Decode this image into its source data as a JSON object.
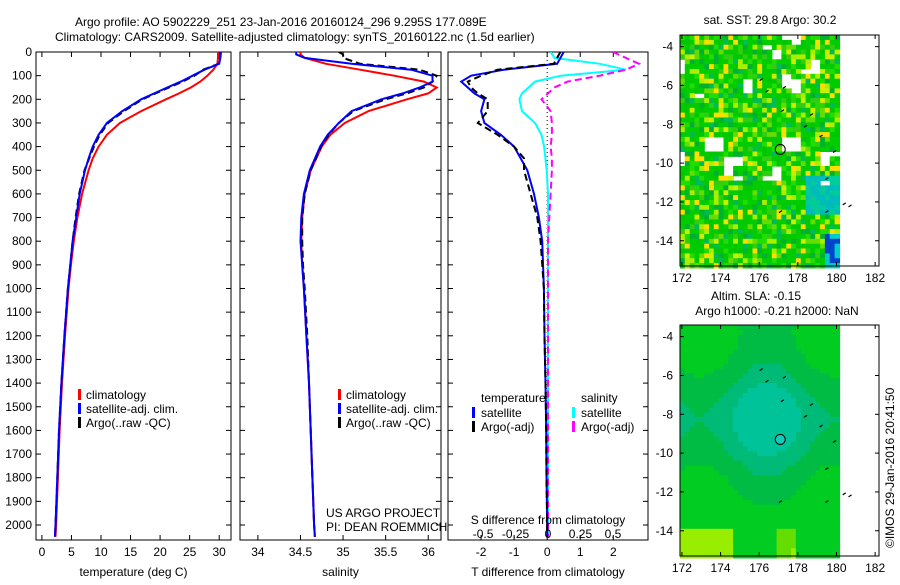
{
  "title": {
    "line1": "Argo profile: AO 5902229_251 23-Jan-2016 20160124_296 9.295S 177.089E",
    "line2": "Climatology: CARS2009. Satellite-adjusted climatology: synTS_20160122.nc (1.5d earlier)"
  },
  "credit": "©IMOS 29-Jan-2016 20:41:50",
  "project": {
    "line1": "US ARGO PROJECT",
    "line2": "PI: DEAN ROEMMICH"
  },
  "colors": {
    "climatology": "#ff0000",
    "satellite": "#0000ff",
    "argo": "#000000",
    "sal_satellite": "#00ffff",
    "sal_argo": "#ff00ff"
  },
  "chart_data": [
    {
      "type": "line",
      "name": "temperature-profile",
      "xlabel": "temperature (deg C)",
      "ylabel": "",
      "xlim": [
        -1,
        32
      ],
      "ylim": [
        2060,
        0
      ],
      "xticks": [
        "0",
        "5",
        "10",
        "15",
        "20",
        "25",
        "30"
      ],
      "xtick_values": [
        0,
        5,
        10,
        15,
        20,
        25,
        30
      ],
      "yticks": [
        "0",
        "100",
        "200",
        "300",
        "400",
        "500",
        "600",
        "700",
        "800",
        "900",
        "1000",
        "1100",
        "1200",
        "1300",
        "1400",
        "1500",
        "1600",
        "1700",
        "1800",
        "1900",
        "2000"
      ],
      "ytick_values": [
        0,
        100,
        200,
        300,
        400,
        500,
        600,
        700,
        800,
        900,
        1000,
        1100,
        1200,
        1300,
        1400,
        1500,
        1600,
        1700,
        1800,
        1900,
        2000
      ],
      "depth": [
        0,
        25,
        50,
        75,
        100,
        125,
        150,
        175,
        200,
        250,
        300,
        350,
        400,
        450,
        500,
        600,
        700,
        800,
        900,
        1000,
        1200,
        1400,
        1600,
        1800,
        2000,
        2050
      ],
      "legend": [
        "climatology",
        "satellite-adj. clim.",
        "Argo(..raw -QC)"
      ],
      "series": [
        {
          "name": "climatology",
          "color": "#ff0000",
          "values": [
            29.8,
            29.8,
            29.7,
            29,
            28,
            26.8,
            25.2,
            23.2,
            21,
            16.8,
            13.2,
            11,
            9.6,
            8.6,
            7.9,
            6.8,
            6,
            5.4,
            4.9,
            4.5,
            3.9,
            3.4,
            3.0,
            2.7,
            2.4,
            2.3
          ]
        },
        {
          "name": "satellite-adj. clim.",
          "color": "#0000ff",
          "values": [
            30.3,
            30.2,
            30,
            27.5,
            25.5,
            23.5,
            21.2,
            19,
            16.8,
            13.6,
            11,
            9.6,
            8.6,
            7.9,
            7.3,
            6.4,
            5.8,
            5.2,
            4.8,
            4.4,
            3.8,
            3.3,
            2.9,
            2.6,
            2.3,
            2.2
          ]
        },
        {
          "name": "Argo(..raw -QC)",
          "color": "#000000",
          "dashed": true,
          "values": [
            30.2,
            30.1,
            29.9,
            27.3,
            25.8,
            23.8,
            21.5,
            19.2,
            17,
            13.9,
            11.2,
            9.8,
            8.8,
            8,
            7.2,
            6.3,
            5.7,
            5.2,
            4.8,
            4.4,
            3.8,
            3.3,
            2.9,
            2.6,
            2.3,
            2.2
          ]
        }
      ]
    },
    {
      "type": "line",
      "name": "salinity-profile",
      "xlabel": "salinity",
      "xlim": [
        33.79,
        36.15
      ],
      "ylim": [
        2060,
        0
      ],
      "xticks": [
        "34",
        "34.5",
        "35",
        "35.5",
        "36"
      ],
      "xtick_values": [
        34,
        34.5,
        35,
        35.5,
        36
      ],
      "depth": [
        0,
        10,
        25,
        50,
        75,
        100,
        125,
        150,
        175,
        200,
        250,
        300,
        350,
        400,
        500,
        600,
        700,
        800,
        900,
        1000,
        1200,
        1400,
        1600,
        1800,
        2000,
        2050
      ],
      "legend": [
        "climatology",
        "satellite-adj. clim.",
        "Argo(..raw -QC)"
      ],
      "series": [
        {
          "name": "climatology",
          "color": "#ff0000",
          "values": [
            34.5,
            34.5,
            34.55,
            34.8,
            35.2,
            35.6,
            35.95,
            36.1,
            36.0,
            35.75,
            35.3,
            35.02,
            34.85,
            34.75,
            34.62,
            34.55,
            34.52,
            34.51,
            34.52,
            34.54,
            34.57,
            34.6,
            34.62,
            34.64,
            34.66,
            34.67
          ]
        },
        {
          "name": "satellite-adj. clim.",
          "color": "#0000ff",
          "values": [
            34.45,
            34.45,
            34.55,
            35.1,
            35.8,
            36.05,
            36.05,
            35.9,
            35.7,
            35.45,
            35.1,
            34.95,
            34.82,
            34.73,
            34.61,
            34.54,
            34.51,
            34.5,
            34.52,
            34.54,
            34.57,
            34.6,
            34.62,
            34.64,
            34.66,
            34.67
          ]
        },
        {
          "name": "Argo(..raw -QC)",
          "color": "#000000",
          "dashed": true,
          "values": [
            34.95,
            35.0,
            35.0,
            35.2,
            35.9,
            36.1,
            36.05,
            35.95,
            35.75,
            35.5,
            35.12,
            34.95,
            34.83,
            34.74,
            34.62,
            34.55,
            34.52,
            34.52,
            34.53,
            34.55,
            34.58,
            34.6,
            34.62,
            34.64,
            34.66,
            34.67
          ]
        }
      ]
    },
    {
      "type": "line",
      "name": "difference-profile",
      "xlabel": "T difference from climatology",
      "x2label": "S difference from climatology",
      "xlim": [
        -3,
        3.05
      ],
      "x2lim": [
        -0.77,
        0.77
      ],
      "ylim": [
        2060,
        0
      ],
      "xticks": [
        "-2",
        "-1",
        "0",
        "1",
        "2"
      ],
      "xtick_values": [
        -2,
        -1,
        0,
        1,
        2
      ],
      "x2ticks": [
        "-0.5",
        "-0.25",
        "0",
        "0.25",
        "0.5"
      ],
      "x2tick_values": [
        -0.5,
        -0.25,
        0,
        0.25,
        0.5
      ],
      "depth": [
        0,
        25,
        50,
        75,
        100,
        125,
        150,
        175,
        200,
        250,
        300,
        350,
        400,
        450,
        500,
        600,
        700,
        800,
        1000,
        1200,
        1400,
        1600,
        1800,
        2000,
        2050
      ],
      "legend": {
        "temperature_header": "temperature",
        "salinity_header": "salinity",
        "items": [
          "satellite",
          "Argo(-adj)",
          "satellite",
          "Argo(-adj)"
        ]
      },
      "series": [
        {
          "name": "temperature satellite",
          "axis": "T",
          "color": "#0000ff",
          "values": [
            0.5,
            0.4,
            0.3,
            -1.3,
            -2.3,
            -2.6,
            -2.4,
            -2.2,
            -1.9,
            -2.0,
            -1.9,
            -1.4,
            -1.0,
            -0.8,
            -0.6,
            -0.4,
            -0.25,
            -0.15,
            -0.1,
            -0.08,
            -0.05,
            -0.03,
            -0.02,
            0,
            0
          ]
        },
        {
          "name": "temperature Argo(-adj)",
          "axis": "T",
          "color": "#000000",
          "dashed": true,
          "values": [
            0.4,
            0.3,
            0.2,
            -1.5,
            -2.0,
            -2.4,
            -2.3,
            -2.1,
            -1.8,
            -1.8,
            -2.1,
            -1.5,
            -1.0,
            -0.7,
            -0.7,
            -0.5,
            -0.3,
            -0.2,
            -0.1,
            -0.08,
            -0.05,
            -0.03,
            -0.02,
            0,
            0
          ]
        },
        {
          "name": "salinity satellite",
          "axis": "S",
          "color": "#00ffff",
          "values": [
            0.02,
            0.05,
            0.4,
            0.6,
            0.1,
            -0.1,
            -0.15,
            -0.2,
            -0.22,
            -0.2,
            -0.1,
            -0.05,
            -0.03,
            -0.02,
            -0.01,
            0,
            0,
            0,
            0,
            0,
            0,
            0,
            0,
            0,
            0
          ]
        },
        {
          "name": "salinity Argo(-adj)",
          "axis": "S",
          "color": "#ff00ff",
          "dashed": true,
          "values": [
            0.5,
            0.6,
            0.7,
            0.6,
            0.4,
            0.15,
            0.05,
            0,
            -0.05,
            0.02,
            0.03,
            0.03,
            0.02,
            0.03,
            0.03,
            0.02,
            0.01,
            0,
            0,
            0,
            0,
            0,
            0,
            0,
            0
          ]
        }
      ]
    },
    {
      "type": "heatmap",
      "name": "sst-map",
      "title": "sat. SST: 29.8 Argo: 30.2",
      "xlim": [
        171.9,
        182.2
      ],
      "ylim": [
        -15.3,
        -3.4
      ],
      "xticks": [
        "172",
        "174",
        "176",
        "178",
        "180",
        "182"
      ],
      "xtick_values": [
        172,
        174,
        176,
        178,
        180,
        182
      ],
      "yticks": [
        "-4",
        "-6",
        "-8",
        "-10",
        "-12",
        "-14"
      ],
      "ytick_values": [
        -4,
        -6,
        -8,
        -10,
        -12,
        -14
      ],
      "data_lon_max": 180,
      "argo_position": {
        "lon": 177.089,
        "lat": -9.295
      }
    },
    {
      "type": "heatmap",
      "name": "sla-map",
      "title": "Altim. SLA: -0.15",
      "subtitle": "Argo h1000: -0.21 h2000: NaN",
      "xlim": [
        171.9,
        182.2
      ],
      "ylim": [
        -15.3,
        -3.4
      ],
      "xticks": [
        "172",
        "174",
        "176",
        "178",
        "180",
        "182"
      ],
      "xtick_values": [
        172,
        174,
        176,
        178,
        180,
        182
      ],
      "yticks": [
        "-4",
        "-6",
        "-8",
        "-10",
        "-12",
        "-14"
      ],
      "ytick_values": [
        -4,
        -6,
        -8,
        -10,
        -12,
        -14
      ],
      "data_lon_max": 180,
      "argo_position": {
        "lon": 177.089,
        "lat": -9.295
      }
    }
  ]
}
